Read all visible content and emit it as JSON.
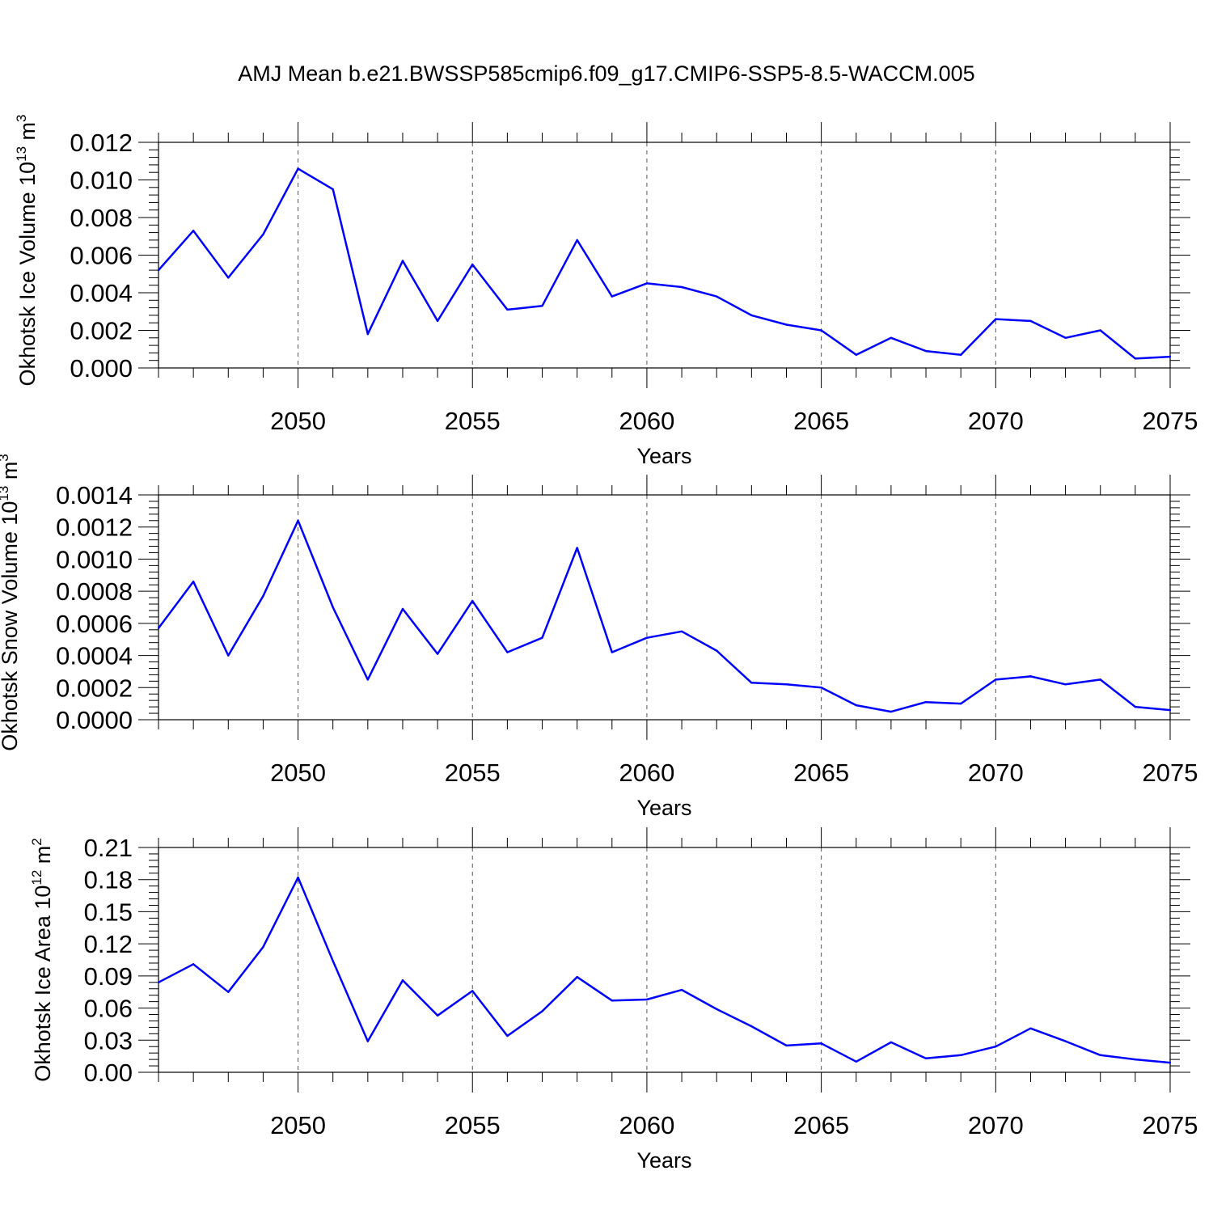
{
  "title": "AMJ Mean b.e21.BWSSP585cmip6.f09_g17.CMIP6-SSP5-8.5-WACCM.005",
  "chart_data": [
    {
      "type": "line",
      "title": "",
      "xlabel": "Years",
      "ylabel": "Okhotsk Ice Volume 10",
      "ylabel_exp": "13",
      "ylabel_unit": " m",
      "ylabel_unit_exp": "3",
      "xlim": [
        2046,
        2075
      ],
      "ylim": [
        0,
        0.012
      ],
      "x_ticks": [
        2050,
        2055,
        2060,
        2065,
        2070,
        2075
      ],
      "x_tick_labels": [
        "2050",
        "2055",
        "2060",
        "2065",
        "2070",
        "2075"
      ],
      "y_ticks": [
        0,
        0.002,
        0.004,
        0.006,
        0.008,
        0.01,
        0.012
      ],
      "y_tick_labels": [
        "0.000",
        "0.002",
        "0.004",
        "0.006",
        "0.008",
        "0.010",
        "0.012"
      ],
      "grid": "vertical dashed at major x ticks",
      "line_color": "#0000ff",
      "x": [
        2046,
        2047,
        2048,
        2049,
        2050,
        2051,
        2052,
        2053,
        2054,
        2055,
        2056,
        2057,
        2058,
        2059,
        2060,
        2061,
        2062,
        2063,
        2064,
        2065,
        2066,
        2067,
        2068,
        2069,
        2070,
        2071,
        2072,
        2073,
        2074,
        2075
      ],
      "values": [
        0.0052,
        0.0073,
        0.0048,
        0.0071,
        0.0106,
        0.0095,
        0.0018,
        0.0057,
        0.0025,
        0.0055,
        0.0031,
        0.0033,
        0.0068,
        0.0038,
        0.0045,
        0.0043,
        0.0038,
        0.0028,
        0.0023,
        0.002,
        0.0007,
        0.0016,
        0.0009,
        0.0007,
        0.0026,
        0.0025,
        0.0016,
        0.002,
        0.0005,
        0.0006
      ]
    },
    {
      "type": "line",
      "title": "",
      "xlabel": "Years",
      "ylabel": "Okhotsk Snow Volume 10",
      "ylabel_exp": "13",
      "ylabel_unit": " m",
      "ylabel_unit_exp": "3",
      "xlim": [
        2046,
        2075
      ],
      "ylim": [
        0,
        0.0014
      ],
      "x_ticks": [
        2050,
        2055,
        2060,
        2065,
        2070,
        2075
      ],
      "x_tick_labels": [
        "2050",
        "2055",
        "2060",
        "2065",
        "2070",
        "2075"
      ],
      "y_ticks": [
        0,
        0.0002,
        0.0004,
        0.0006,
        0.0008,
        0.001,
        0.0012,
        0.0014
      ],
      "y_tick_labels": [
        "0.0000",
        "0.0002",
        "0.0004",
        "0.0006",
        "0.0008",
        "0.0010",
        "0.0012",
        "0.0014"
      ],
      "grid": "vertical dashed at major x ticks",
      "line_color": "#0000ff",
      "x": [
        2046,
        2047,
        2048,
        2049,
        2050,
        2051,
        2052,
        2053,
        2054,
        2055,
        2056,
        2057,
        2058,
        2059,
        2060,
        2061,
        2062,
        2063,
        2064,
        2065,
        2066,
        2067,
        2068,
        2069,
        2070,
        2071,
        2072,
        2073,
        2074,
        2075
      ],
      "values": [
        0.00057,
        0.00086,
        0.0004,
        0.00077,
        0.00124,
        0.0007,
        0.00025,
        0.00069,
        0.00041,
        0.00074,
        0.00042,
        0.00051,
        0.00107,
        0.00042,
        0.00051,
        0.00055,
        0.00043,
        0.00023,
        0.00022,
        0.0002,
        9e-05,
        5e-05,
        0.00011,
        0.0001,
        0.00025,
        0.00027,
        0.00022,
        0.00025,
        8e-05,
        6e-05
      ]
    },
    {
      "type": "line",
      "title": "",
      "xlabel": "Years",
      "ylabel": "Okhotsk Ice Area 10",
      "ylabel_exp": "12",
      "ylabel_unit": " m",
      "ylabel_unit_exp": "2",
      "xlim": [
        2046,
        2075
      ],
      "ylim": [
        0,
        0.21
      ],
      "x_ticks": [
        2050,
        2055,
        2060,
        2065,
        2070,
        2075
      ],
      "x_tick_labels": [
        "2050",
        "2055",
        "2060",
        "2065",
        "2070",
        "2075"
      ],
      "y_ticks": [
        0,
        0.03,
        0.06,
        0.09,
        0.12,
        0.15,
        0.18,
        0.21
      ],
      "y_tick_labels": [
        "0.00",
        "0.03",
        "0.06",
        "0.09",
        "0.12",
        "0.15",
        "0.18",
        "0.21"
      ],
      "grid": "vertical dashed at major x ticks",
      "line_color": "#0000ff",
      "x": [
        2046,
        2047,
        2048,
        2049,
        2050,
        2051,
        2052,
        2053,
        2054,
        2055,
        2056,
        2057,
        2058,
        2059,
        2060,
        2061,
        2062,
        2063,
        2064,
        2065,
        2066,
        2067,
        2068,
        2069,
        2070,
        2071,
        2072,
        2073,
        2074,
        2075
      ],
      "values": [
        0.084,
        0.101,
        0.075,
        0.117,
        0.182,
        0.104,
        0.029,
        0.086,
        0.053,
        0.076,
        0.034,
        0.057,
        0.089,
        0.067,
        0.068,
        0.077,
        0.059,
        0.043,
        0.025,
        0.027,
        0.01,
        0.028,
        0.013,
        0.016,
        0.024,
        0.041,
        0.029,
        0.016,
        0.012,
        0.009
      ]
    }
  ]
}
